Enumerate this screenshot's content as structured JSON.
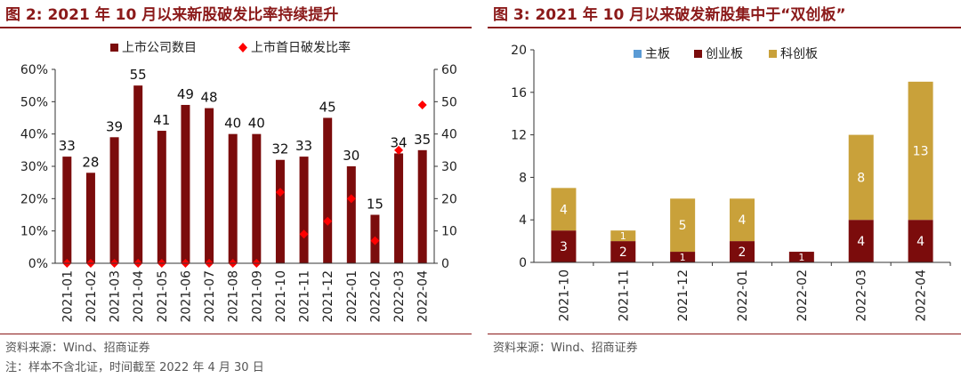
{
  "colors": {
    "title": "#8b1a1a",
    "bar_dark": "#7b0c0c",
    "marker_red": "#ff0000",
    "main_board": "#5b9bd5",
    "chinext": "#7b0c0c",
    "star": "#c9a13a"
  },
  "left": {
    "title": "图 2:  2021 年 10 月以来新股破发比率持续提升",
    "source": "资料来源：Wind、招商证券",
    "note": "注：样本不含北证，时间截至 2022 年 4 月 30 日",
    "chart_data": {
      "type": "bar",
      "title": "图 2:  2021 年 10 月以来新股破发比率持续提升",
      "categories": [
        "2021-01",
        "2021-02",
        "2021-03",
        "2021-04",
        "2021-05",
        "2021-06",
        "2021-07",
        "2021-08",
        "2021-09",
        "2021-10",
        "2021-11",
        "2021-12",
        "2022-01",
        "2022-02",
        "2022-03",
        "2022-04"
      ],
      "series": [
        {
          "name": "上市公司数目",
          "axis": "right",
          "kind": "bar",
          "values": [
            33,
            28,
            39,
            55,
            41,
            49,
            48,
            40,
            40,
            32,
            33,
            45,
            30,
            15,
            34,
            35
          ]
        },
        {
          "name": "上市首日破发比率",
          "axis": "left",
          "kind": "marker",
          "values": [
            0,
            0,
            0,
            0,
            0,
            0,
            0,
            0,
            0,
            0.22,
            0.09,
            0.13,
            0.2,
            0.07,
            0.35,
            0.49
          ]
        }
      ],
      "legend": [
        "上市公司数目",
        "上市首日破发比率"
      ],
      "left_ylim": [
        0,
        0.6
      ],
      "left_ticks": [
        "0%",
        "10%",
        "20%",
        "30%",
        "40%",
        "50%",
        "60%"
      ],
      "right_ylim": [
        0,
        60
      ],
      "right_ticks": [
        "0",
        "10",
        "20",
        "30",
        "40",
        "50",
        "60"
      ]
    }
  },
  "right": {
    "title": "图 3:  2021 年 10 月以来破发新股集中于“双创板”",
    "source": "资料来源：Wind、招商证券",
    "chart_data": {
      "type": "bar",
      "stacked": true,
      "title": "图 3:  2021 年 10 月以来破发新股集中于“双创板”",
      "categories": [
        "2021-10",
        "2021-11",
        "2021-12",
        "2022-01",
        "2022-02",
        "2022-03",
        "2022-04"
      ],
      "series": [
        {
          "name": "主板",
          "values": [
            0,
            0,
            0,
            0,
            0,
            0,
            0
          ]
        },
        {
          "name": "创业板",
          "values": [
            3,
            2,
            1,
            2,
            1,
            4,
            4
          ]
        },
        {
          "name": "科创板",
          "values": [
            4,
            1,
            5,
            4,
            0,
            8,
            13
          ]
        }
      ],
      "legend": [
        "主板",
        "创业板",
        "科创板"
      ],
      "ylim": [
        0,
        20
      ],
      "ticks": [
        "0",
        "4",
        "8",
        "12",
        "16",
        "20"
      ]
    }
  }
}
